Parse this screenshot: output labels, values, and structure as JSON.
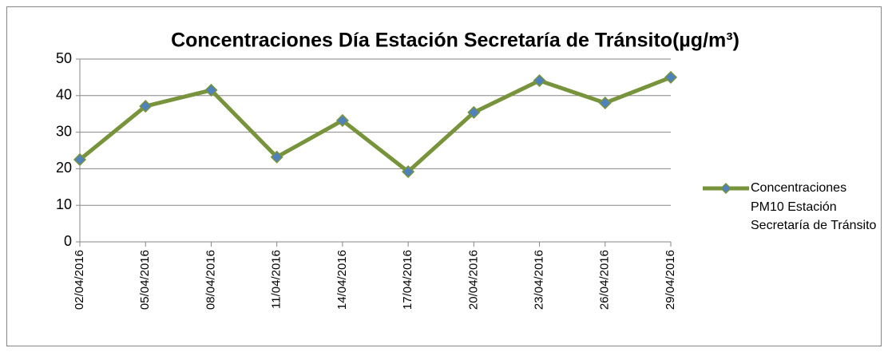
{
  "chart_data": {
    "type": "line",
    "title": "Concentraciones Día Estación Secretaría de Tránsito(µg/m³)",
    "categories": [
      "02/04/2016",
      "05/04/2016",
      "08/04/2016",
      "11/04/2016",
      "14/04/2016",
      "17/04/2016",
      "20/04/2016",
      "23/04/2016",
      "26/04/2016",
      "29/04/2016"
    ],
    "series": [
      {
        "name": "Concentraciones PM10 Estación Secretaría de Tránsito",
        "color": "#77933c",
        "marker_color": "#4f81bd",
        "values": [
          22.5,
          37.1,
          41.5,
          23.2,
          33.2,
          19.2,
          35.4,
          44.1,
          38,
          45
        ]
      }
    ],
    "ylim": [
      0,
      50
    ],
    "yticks": [
      0,
      10,
      20,
      30,
      40,
      50
    ],
    "grid": true,
    "legend": "right"
  }
}
